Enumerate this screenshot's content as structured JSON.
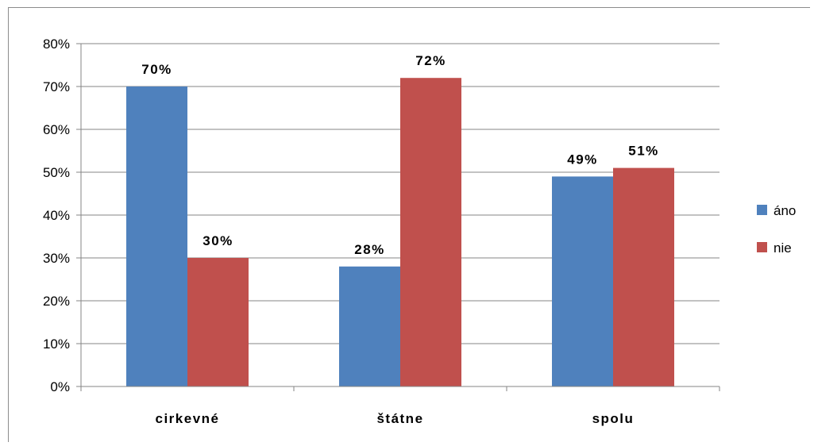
{
  "chart_data": {
    "type": "bar",
    "categories": [
      "cirkevné",
      "štátne",
      "spolu"
    ],
    "series": [
      {
        "name": "áno",
        "color": "#4f81bd",
        "values": [
          70,
          28,
          49
        ],
        "labels": [
          "70%",
          "28%",
          "49%"
        ]
      },
      {
        "name": "nie",
        "color": "#c0504d",
        "values": [
          30,
          72,
          51
        ],
        "labels": [
          "30%",
          "72%",
          "51%"
        ]
      }
    ],
    "ylim": [
      0,
      80
    ],
    "yticks": [
      "0%",
      "10%",
      "20%",
      "30%",
      "40%",
      "50%",
      "60%",
      "70%",
      "80%"
    ],
    "grid": true,
    "legend": "right"
  }
}
